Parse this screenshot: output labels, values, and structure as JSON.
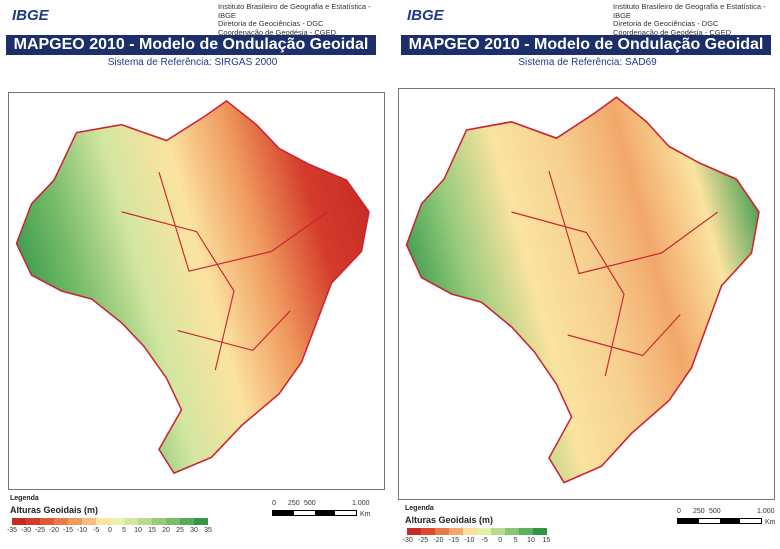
{
  "panels": [
    {
      "logo": "IBGE",
      "institution": [
        "Instituto Brasileiro de Geografia e Estatística - IBGE",
        "Diretoria de Geociências - DGC",
        "Coordenação de Geodésia - CGED"
      ],
      "title": "MAPGEO 2010 - Modelo de Ondulação Geoidal",
      "subtitle": "Sistema de Referência: SIRGAS 2000",
      "legend_label": "Legenda",
      "legend_title": "Alturas Geoidais (m)",
      "legend_ticks": [
        "-35",
        "-30",
        "-25",
        "-20",
        "-15",
        "-10",
        "-5",
        "0",
        "5",
        "10",
        "15",
        "20",
        "25",
        "30",
        "35"
      ],
      "legend_colors": [
        "#c62a24",
        "#d43b2a",
        "#df5a36",
        "#e77b48",
        "#ef9a5e",
        "#f6bd7d",
        "#fbe3a0",
        "#eef0b0",
        "#d3e6a0",
        "#b8da8e",
        "#98cc7c",
        "#78bd6a",
        "#55ab58",
        "#33974a"
      ],
      "scale": {
        "labels": [
          "0",
          "250",
          "500",
          "1.000"
        ],
        "unit": "Km"
      }
    },
    {
      "logo": "IBGE",
      "institution": [
        "Instituto Brasileiro de Geografia e Estatística - IBGE",
        "Diretoria de Geociências - DGC",
        "Coordenação de Geodésia - CGED"
      ],
      "title": "MAPGEO 2010 - Modelo de Ondulação Geoidal",
      "subtitle": "Sistema de Referência: SAD69",
      "legend_label": "Legenda",
      "legend_title": "Alturas Geoidais (m)",
      "legend_ticks": [
        "-30",
        "-25",
        "-20",
        "-15",
        "-10",
        "-5",
        "0",
        "5",
        "10",
        "15"
      ],
      "legend_colors": [
        "#c62a24",
        "#dc4a30",
        "#e77b48",
        "#f2a86a",
        "#fbe09a",
        "#e6eeac",
        "#b8da8e",
        "#88c574",
        "#5cb05c",
        "#2f9648"
      ],
      "scale": {
        "labels": [
          "0",
          "250",
          "500",
          "1.000"
        ],
        "unit": "Km"
      }
    }
  ]
}
